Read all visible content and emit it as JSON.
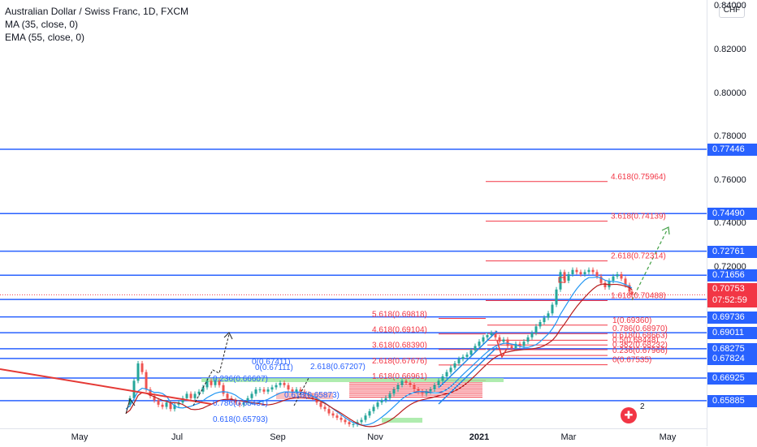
{
  "legend": {
    "title": "Australian Dollar / Swiss Franc, 1D, FXCM",
    "ma": "MA (35, close, 0)",
    "ema": "EMA (55, close, 0)"
  },
  "currency_button": "CHF",
  "price_axis": {
    "ticks": [
      "0.84000",
      "0.82000",
      "0.80000",
      "0.78000",
      "0.76000",
      "0.74000",
      "0.72000"
    ],
    "badges": [
      "0.77446",
      "0.74490",
      "0.72761",
      "0.71656",
      "0.70538",
      "0.69736",
      "0.69011",
      "0.68275",
      "0.67824",
      "0.66925",
      "0.65885"
    ],
    "current_price": "0.70753",
    "countdown": "07:52:59"
  },
  "time_axis": {
    "labels": [
      "May",
      "Jul",
      "Sep",
      "Nov",
      "2021",
      "Mar",
      "May"
    ]
  },
  "fib_labels_upper": [
    "4.618(0.75964)",
    "3.618(0.74139)",
    "2.618(0.72314)",
    "1.618(0.70488)",
    "1(0.69360)",
    "0.786(0.68970)",
    "0.618(0.68663)",
    "0.5(0.68448)",
    "0.382(0.68232)",
    "0.236(0.67966)",
    "0(0.67535)"
  ],
  "fib_labels_middle": [
    "5.618(0.69818)",
    "4.618(0.69104)",
    "3.618(0.68390)",
    "2.618(0.67676)",
    "1.618(0.66961)"
  ],
  "fib_labels_left": [
    "0(0.67411)",
    "2.618(0.67207)",
    "0.236(0.66607)",
    "0(0.67111)",
    "0.618(0.65873)",
    "0.786(0.65431)",
    "0.618(0.65793)"
  ],
  "badge_number": "2",
  "colors": {
    "hline": "#2962ff",
    "fib": "#f23645",
    "up": "#26a69a",
    "down": "#ef5350",
    "ma": "#2196f3",
    "ema": "#b71c1c"
  }
}
